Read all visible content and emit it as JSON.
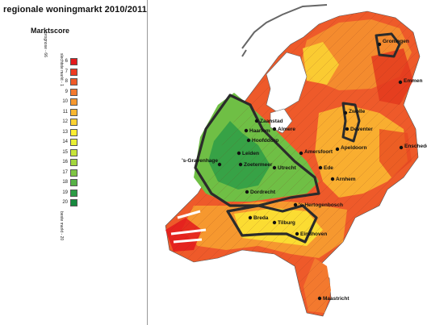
{
  "title": "regionale woningmarkt 2010/2011",
  "legend": {
    "heading": "Marktscore",
    "label_best": "slechtste markt - 1",
    "label_worst": "beste markt - 20",
    "label_axis": "prognose - 66",
    "scale": [
      {
        "score": "6",
        "color": "#e31a1c"
      },
      {
        "score": "7",
        "color": "#ee3b22"
      },
      {
        "score": "8",
        "color": "#f05a28"
      },
      {
        "score": "9",
        "color": "#f3792e"
      },
      {
        "score": "10",
        "color": "#f6982f"
      },
      {
        "score": "11",
        "color": "#f9b731"
      },
      {
        "score": "12",
        "color": "#fbd233"
      },
      {
        "score": "13",
        "color": "#fdee33"
      },
      {
        "score": "14",
        "color": "#e8ef35"
      },
      {
        "score": "15",
        "color": "#c7e43a"
      },
      {
        "score": "16",
        "color": "#a3d63f"
      },
      {
        "score": "17",
        "color": "#7fc544"
      },
      {
        "score": "18",
        "color": "#57b147"
      },
      {
        "score": "19",
        "color": "#2e9c46"
      },
      {
        "score": "20",
        "color": "#178a3f"
      }
    ]
  },
  "cities": [
    {
      "name": "Groningen"
    },
    {
      "name": "Emmen"
    },
    {
      "name": "Zwolle"
    },
    {
      "name": "Enschede"
    },
    {
      "name": "Deventer"
    },
    {
      "name": "Apeldoorn"
    },
    {
      "name": "Arnhem"
    },
    {
      "name": "Ede"
    },
    {
      "name": "Amersfoort"
    },
    {
      "name": "Utrecht"
    },
    {
      "name": "Almere"
    },
    {
      "name": "Zaanstad"
    },
    {
      "name": "Haarlem"
    },
    {
      "name": "Hoofddorp"
    },
    {
      "name": "Leiden"
    },
    {
      "name": "Zoetermeer"
    },
    {
      "name": "'s-Gravenhage"
    },
    {
      "name": "Dordrecht"
    },
    {
      "name": "'s-Hertogenbosch"
    },
    {
      "name": "Breda"
    },
    {
      "name": "Tilburg"
    },
    {
      "name": "Eindhoven"
    },
    {
      "name": "Maastricht"
    }
  ]
}
